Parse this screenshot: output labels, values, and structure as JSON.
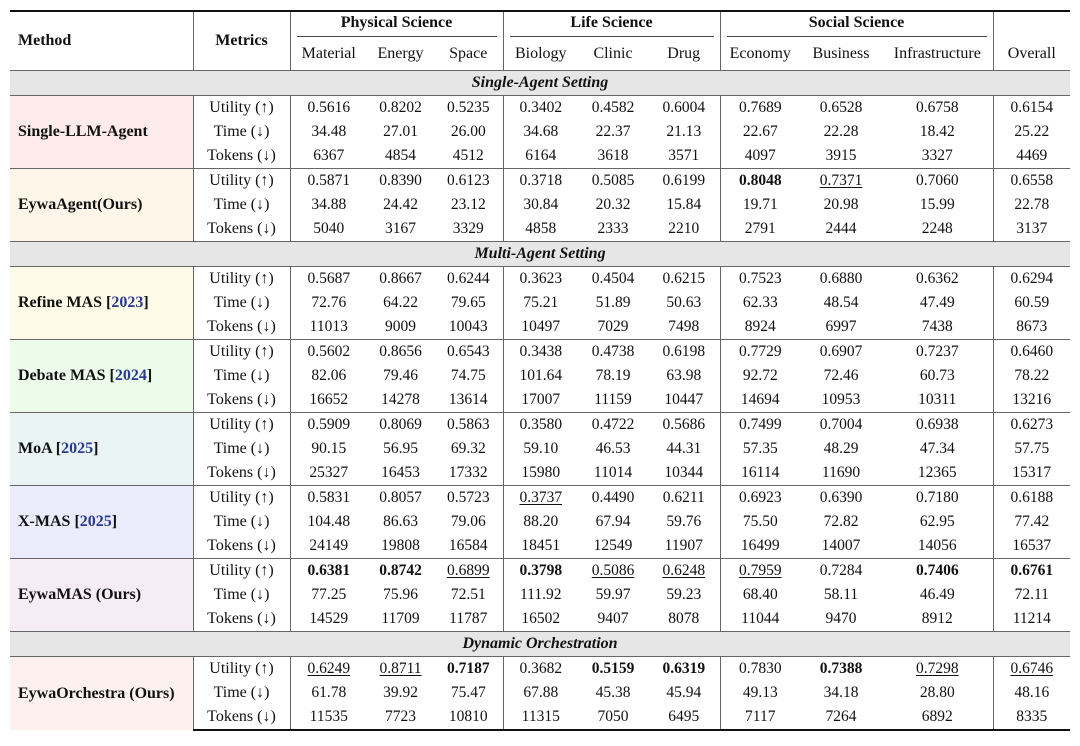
{
  "header": {
    "method": "Method",
    "metrics": "Metrics",
    "groups": [
      "Physical Science",
      "Life Science",
      "Social Science"
    ],
    "columns": [
      "Material",
      "Energy",
      "Space",
      "Biology",
      "Clinic",
      "Drug",
      "Economy",
      "Business",
      "Infrastructure",
      "Overall"
    ]
  },
  "settings": [
    "Single-Agent Setting",
    "Multi-Agent Setting",
    "Dynamic Orchestration"
  ],
  "metric_labels": [
    "Utility (↑)",
    "Time (↓)",
    "Tokens (↓)"
  ],
  "methods": [
    {
      "name": "Single-LLM-Agent",
      "cite": "",
      "bg": "#fdebec",
      "rows": [
        [
          "0.5616",
          "0.8202",
          "0.5235",
          "0.3402",
          "0.4582",
          "0.6004",
          "0.7689",
          "0.6528",
          "0.6758",
          "0.6154"
        ],
        [
          "34.48",
          "27.01",
          "26.00",
          "34.68",
          "22.37",
          "21.13",
          "22.67",
          "22.28",
          "18.42",
          "25.22"
        ],
        [
          "6367",
          "4854",
          "4512",
          "6164",
          "3618",
          "3571",
          "4097",
          "3915",
          "3327",
          "4469"
        ]
      ]
    },
    {
      "name": "EywaAgent(Ours)",
      "cite": "",
      "bg": "#fdf6e8",
      "rows": [
        [
          "0.5871",
          "0.8390",
          "0.6123",
          "0.3718",
          "0.5085",
          "0.6199",
          "0.8048",
          "0.7371",
          "0.7060",
          "0.6558"
        ],
        [
          "34.88",
          "24.42",
          "23.12",
          "30.84",
          "20.32",
          "15.84",
          "19.71",
          "20.98",
          "15.99",
          "22.78"
        ],
        [
          "5040",
          "3167",
          "3329",
          "4858",
          "2333",
          "2210",
          "2791",
          "2444",
          "2248",
          "3137"
        ]
      ]
    },
    {
      "name": "Refine MAS",
      "cite": "2023",
      "bg": "#fdfbe8",
      "rows": [
        [
          "0.5687",
          "0.8667",
          "0.6244",
          "0.3623",
          "0.4504",
          "0.6215",
          "0.7523",
          "0.6880",
          "0.6362",
          "0.6294"
        ],
        [
          "72.76",
          "64.22",
          "79.65",
          "75.21",
          "51.89",
          "50.63",
          "62.33",
          "48.54",
          "47.49",
          "60.59"
        ],
        [
          "11013",
          "9009",
          "10043",
          "10497",
          "7029",
          "7498",
          "8924",
          "6997",
          "7438",
          "8673"
        ]
      ]
    },
    {
      "name": "Debate MAS",
      "cite": "2024",
      "bg": "#ecfbea",
      "rows": [
        [
          "0.5602",
          "0.8656",
          "0.6543",
          "0.3438",
          "0.4738",
          "0.6198",
          "0.7729",
          "0.6907",
          "0.7237",
          "0.6460"
        ],
        [
          "82.06",
          "79.46",
          "74.75",
          "101.64",
          "78.19",
          "63.98",
          "92.72",
          "72.46",
          "60.73",
          "78.22"
        ],
        [
          "16652",
          "14278",
          "13614",
          "17007",
          "11159",
          "10447",
          "14694",
          "10953",
          "10311",
          "13216"
        ]
      ]
    },
    {
      "name": "MoA",
      "cite": "2025",
      "bg": "#e9f4f3",
      "rows": [
        [
          "0.5909",
          "0.8069",
          "0.5863",
          "0.3580",
          "0.4722",
          "0.5686",
          "0.7499",
          "0.7004",
          "0.6938",
          "0.6273"
        ],
        [
          "90.15",
          "56.95",
          "69.32",
          "59.10",
          "46.53",
          "44.31",
          "57.35",
          "48.29",
          "47.34",
          "57.75"
        ],
        [
          "25327",
          "16453",
          "17332",
          "15980",
          "11014",
          "10344",
          "16114",
          "11690",
          "12365",
          "15317"
        ]
      ]
    },
    {
      "name": "X-MAS",
      "cite": "2025",
      "bg": "#ebebfb",
      "rows": [
        [
          "0.5831",
          "0.8057",
          "0.5723",
          "0.3737",
          "0.4490",
          "0.6211",
          "0.6923",
          "0.6390",
          "0.7180",
          "0.6188"
        ],
        [
          "104.48",
          "86.63",
          "79.06",
          "88.20",
          "67.94",
          "59.76",
          "75.50",
          "72.82",
          "62.95",
          "77.42"
        ],
        [
          "24149",
          "19808",
          "16584",
          "18451",
          "12549",
          "11907",
          "16499",
          "14007",
          "14056",
          "16537"
        ]
      ]
    },
    {
      "name": "EywaMAS (Ours)",
      "cite": "",
      "bg": "#f6ecf6",
      "rows": [
        [
          "0.6381",
          "0.8742",
          "0.6899",
          "0.3798",
          "0.5086",
          "0.6248",
          "0.7959",
          "0.7284",
          "0.7406",
          "0.6761"
        ],
        [
          "77.25",
          "75.96",
          "72.51",
          "111.92",
          "59.97",
          "59.23",
          "68.40",
          "58.11",
          "46.49",
          "72.11"
        ],
        [
          "14529",
          "11709",
          "11787",
          "16502",
          "9407",
          "8078",
          "11044",
          "9470",
          "8912",
          "11214"
        ]
      ]
    },
    {
      "name": "EywaOrchestra (Ours)",
      "cite": "",
      "bg": "#fcf1ef",
      "rows": [
        [
          "0.6249",
          "0.8711",
          "0.7187",
          "0.3682",
          "0.5159",
          "0.6319",
          "0.7830",
          "0.7388",
          "0.7298",
          "0.6746"
        ],
        [
          "61.78",
          "39.92",
          "75.47",
          "67.88",
          "45.38",
          "45.94",
          "49.13",
          "34.18",
          "28.80",
          "48.16"
        ],
        [
          "11535",
          "7723",
          "10810",
          "11315",
          "7050",
          "6495",
          "7117",
          "7264",
          "6892",
          "8335"
        ]
      ]
    }
  ],
  "emphasis": {
    "bold": [
      [
        1,
        0,
        6
      ],
      [
        6,
        0,
        0
      ],
      [
        6,
        0,
        1
      ],
      [
        6,
        0,
        3
      ],
      [
        6,
        0,
        8
      ],
      [
        6,
        0,
        9
      ],
      [
        7,
        0,
        2
      ],
      [
        7,
        0,
        4
      ],
      [
        7,
        0,
        5
      ],
      [
        7,
        0,
        7
      ]
    ],
    "underline": [
      [
        1,
        0,
        7
      ],
      [
        5,
        0,
        3
      ],
      [
        6,
        0,
        2
      ],
      [
        6,
        0,
        4
      ],
      [
        6,
        0,
        5
      ],
      [
        6,
        0,
        6
      ],
      [
        7,
        0,
        0
      ],
      [
        7,
        0,
        1
      ],
      [
        7,
        0,
        8
      ],
      [
        7,
        0,
        9
      ]
    ]
  }
}
